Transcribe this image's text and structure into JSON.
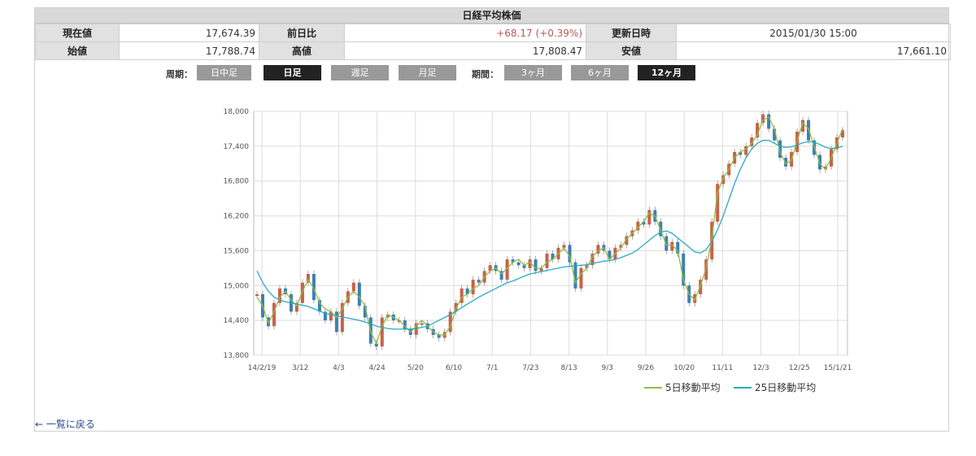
{
  "title": "日経平均株価",
  "quote": {
    "current_label": "現在値",
    "current": "17,674.39",
    "change_label": "前日比",
    "change": "+68.17 (+0.39%)",
    "updated_label": "更新日時",
    "updated": "2015/01/30 15:00",
    "open_label": "始値",
    "open": "17,788.74",
    "high_label": "高値",
    "high": "17,808.47",
    "low_label": "安値",
    "low": "17,661.10"
  },
  "controls": {
    "period_caption": "周期：",
    "periods": [
      "日中足",
      "日足",
      "週足",
      "月足"
    ],
    "active_period": "日足",
    "range_caption": "期間：",
    "ranges": [
      "3ヶ月",
      "6ヶ月",
      "12ヶ月"
    ],
    "active_range": "12ヶ月"
  },
  "chart_data": {
    "type": "line",
    "x_ticks": [
      "14/2/19",
      "3/12",
      "4/3",
      "4/24",
      "5/20",
      "6/10",
      "7/1",
      "7/23",
      "8/13",
      "9/3",
      "9/26",
      "10/20",
      "11/11",
      "12/3",
      "12/25",
      "15/1/21"
    ],
    "y_ticks": [
      "18,000",
      "17,400",
      "16,800",
      "16,200",
      "15,600",
      "15,000",
      "14,400",
      "13,800"
    ],
    "ylim": [
      13800,
      18000
    ],
    "grid": true,
    "legend_position": "bottom-right",
    "series": [
      {
        "name": "5日移動平均",
        "color": "#8dbf3f",
        "values": [
          14800,
          14650,
          14350,
          14550,
          14800,
          14900,
          14750,
          14650,
          14900,
          15100,
          14950,
          14700,
          14600,
          14550,
          14450,
          14600,
          14800,
          14900,
          14800,
          14650,
          14200,
          14000,
          14300,
          14500,
          14450,
          14400,
          14300,
          14200,
          14300,
          14400,
          14300,
          14200,
          14150,
          14150,
          14300,
          14600,
          14800,
          14850,
          14950,
          15000,
          15150,
          15250,
          15300,
          15200,
          15300,
          15400,
          15450,
          15350,
          15400,
          15300,
          15300,
          15400,
          15450,
          15550,
          15650,
          15500,
          15050,
          15200,
          15300,
          15500,
          15600,
          15650,
          15450,
          15550,
          15650,
          15800,
          15900,
          16000,
          16100,
          16250,
          16200,
          15950,
          15700,
          15700,
          15600,
          15100,
          14850,
          14750,
          15000,
          15300,
          15800,
          16600,
          16850,
          17000,
          17200,
          17300,
          17350,
          17450,
          17600,
          17850,
          17900,
          17700,
          17300,
          17100,
          17150,
          17500,
          17800,
          17700,
          17400,
          17100,
          17000,
          17200,
          17450,
          17700
        ]
      },
      {
        "name": "25日移動平均",
        "color": "#2aaac4",
        "values": [
          15250,
          15050,
          14900,
          14800,
          14750,
          14720,
          14700,
          14680,
          14660,
          14640,
          14600,
          14560,
          14520,
          14500,
          14480,
          14460,
          14440,
          14420,
          14400,
          14370,
          14340,
          14300,
          14280,
          14260,
          14250,
          14250,
          14250,
          14250,
          14260,
          14280,
          14300,
          14350,
          14400,
          14450,
          14500,
          14560,
          14620,
          14680,
          14740,
          14800,
          14850,
          14900,
          14950,
          15000,
          15050,
          15080,
          15120,
          15160,
          15200,
          15220,
          15240,
          15260,
          15280,
          15300,
          15320,
          15330,
          15340,
          15350,
          15360,
          15380,
          15400,
          15420,
          15430,
          15450,
          15480,
          15520,
          15560,
          15620,
          15700,
          15780,
          15860,
          15920,
          15940,
          15900,
          15820,
          15740,
          15660,
          15580,
          15560,
          15620,
          15760,
          15960,
          16200,
          16480,
          16760,
          17000,
          17200,
          17350,
          17450,
          17500,
          17500,
          17450,
          17400,
          17380,
          17390,
          17420,
          17460,
          17480,
          17470,
          17430,
          17380,
          17360,
          17370,
          17400
        ]
      },
      {
        "name": "日足",
        "color": "#c9604a",
        "values": [
          14850,
          14450,
          14300,
          14700,
          14950,
          14850,
          14550,
          14700,
          15050,
          15200,
          14750,
          14550,
          14400,
          14550,
          14200,
          14700,
          14900,
          15050,
          14650,
          14450,
          14000,
          13950,
          14450,
          14500,
          14400,
          14400,
          14250,
          14150,
          14350,
          14350,
          14250,
          14150,
          14100,
          14200,
          14550,
          14700,
          14950,
          14850,
          15100,
          15050,
          15250,
          15350,
          15250,
          15100,
          15450,
          15400,
          15350,
          15300,
          15450,
          15250,
          15300,
          15550,
          15450,
          15650,
          15700,
          15400,
          14950,
          15300,
          15350,
          15550,
          15700,
          15600,
          15450,
          15650,
          15700,
          15850,
          15950,
          16100,
          16050,
          16300,
          16100,
          15850,
          15600,
          15750,
          15550,
          15000,
          14700,
          14850,
          15100,
          15450,
          16100,
          16750,
          16900,
          17100,
          17300,
          17250,
          17400,
          17550,
          17800,
          17950,
          17700,
          17500,
          17200,
          17050,
          17300,
          17650,
          17850,
          17500,
          17250,
          17000,
          17050,
          17350,
          17550,
          17674
        ]
      }
    ]
  },
  "back_link": "← 一覧に戻る"
}
